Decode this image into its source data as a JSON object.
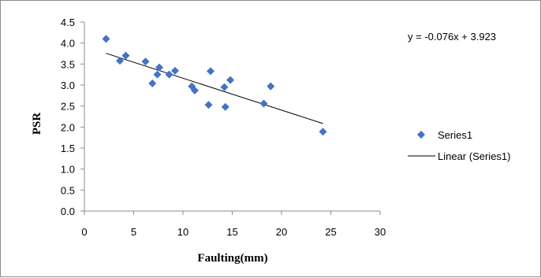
{
  "chart_data": {
    "type": "scatter",
    "title": "",
    "xlabel": "Faulting(mm)",
    "ylabel": "PSR",
    "xlim": [
      0,
      30
    ],
    "ylim": [
      0.0,
      4.5
    ],
    "x_ticks": [
      "0",
      "5",
      "10",
      "15",
      "20",
      "25",
      "30"
    ],
    "y_ticks": [
      "0.0",
      "0.5",
      "1.0",
      "1.5",
      "2.0",
      "2.5",
      "3.0",
      "3.5",
      "4.0",
      "4.5"
    ],
    "grid": false,
    "legend_position": "right",
    "series": [
      {
        "name": "Series1",
        "marker": "diamond",
        "color": "#4472c4",
        "points": [
          [
            2.2,
            4.1
          ],
          [
            3.6,
            3.58
          ],
          [
            4.2,
            3.7
          ],
          [
            6.2,
            3.56
          ],
          [
            6.9,
            3.04
          ],
          [
            7.4,
            3.25
          ],
          [
            7.6,
            3.42
          ],
          [
            8.6,
            3.25
          ],
          [
            9.2,
            3.34
          ],
          [
            10.9,
            2.97
          ],
          [
            11.2,
            2.87
          ],
          [
            12.6,
            2.53
          ],
          [
            12.8,
            3.33
          ],
          [
            14.2,
            2.95
          ],
          [
            14.3,
            2.48
          ],
          [
            14.8,
            3.12
          ],
          [
            18.2,
            2.56
          ],
          [
            18.9,
            2.97
          ],
          [
            24.2,
            1.89
          ]
        ]
      }
    ],
    "trendline": {
      "name": "Linear (Series1)",
      "type": "linear",
      "slope": -0.076,
      "intercept": 3.923,
      "x_range": [
        2.2,
        24.2
      ],
      "color": "#000000",
      "equation": "y = -0.076x + 3.923"
    }
  }
}
